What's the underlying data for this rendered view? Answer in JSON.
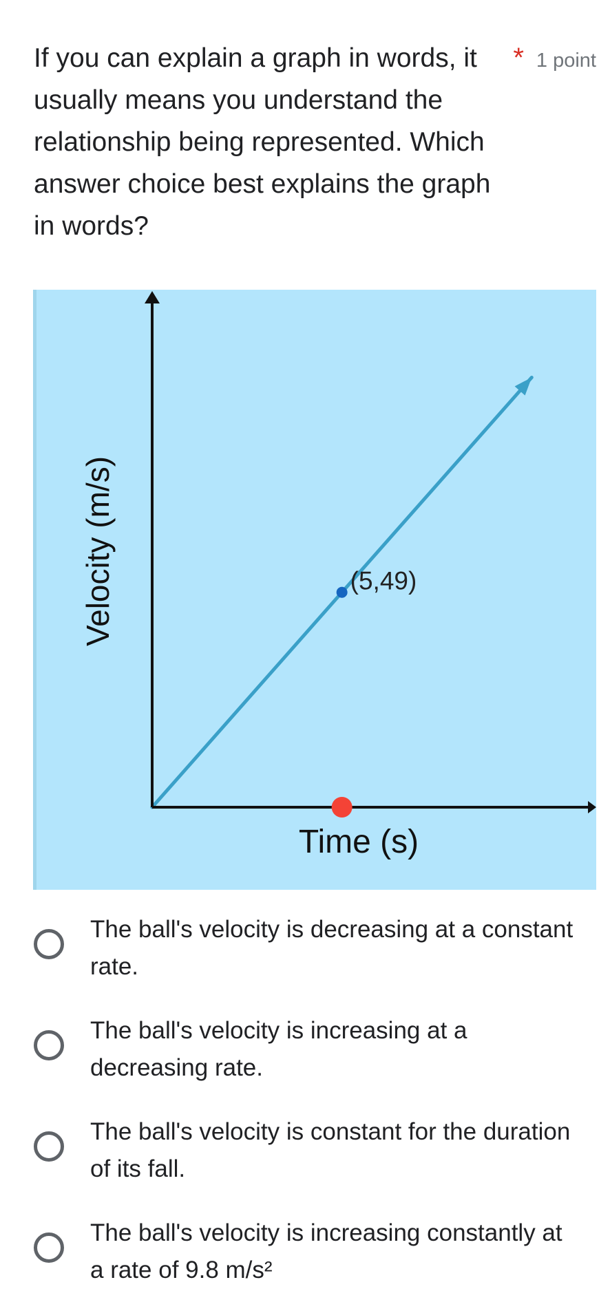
{
  "question": {
    "text": "If you can explain a graph in words, it usually means you understand the relationship being represented. Which answer choice best explains the graph in words?",
    "required_marker": "*",
    "points": "1 point"
  },
  "colors": {
    "figure_bg": "#b3e5fc",
    "line": "#3aa0c8",
    "point": "#1565c0",
    "marker": "#f44336",
    "required": "#d93025"
  },
  "chart_data": {
    "type": "line",
    "title": "",
    "xlabel": "Time (s)",
    "ylabel": "Velocity (m/s)",
    "x": [
      0,
      5,
      10
    ],
    "y": [
      0,
      49,
      98
    ],
    "xlim": [
      0,
      11.7
    ],
    "ylim": [
      0,
      118
    ],
    "annotations": [
      {
        "x": 5,
        "y": 49,
        "label": "(5,49)"
      }
    ],
    "highlight": {
      "x": 5,
      "y": 0
    },
    "grid": false
  },
  "options": [
    {
      "label": "The ball's velocity is decreasing at a constant rate."
    },
    {
      "label": "The ball's velocity is increasing at a decreasing rate."
    },
    {
      "label": "The ball's velocity is constant for the duration of its fall."
    },
    {
      "label": "The ball's velocity is increasing constantly at a rate of 9.8 m/s²"
    }
  ]
}
